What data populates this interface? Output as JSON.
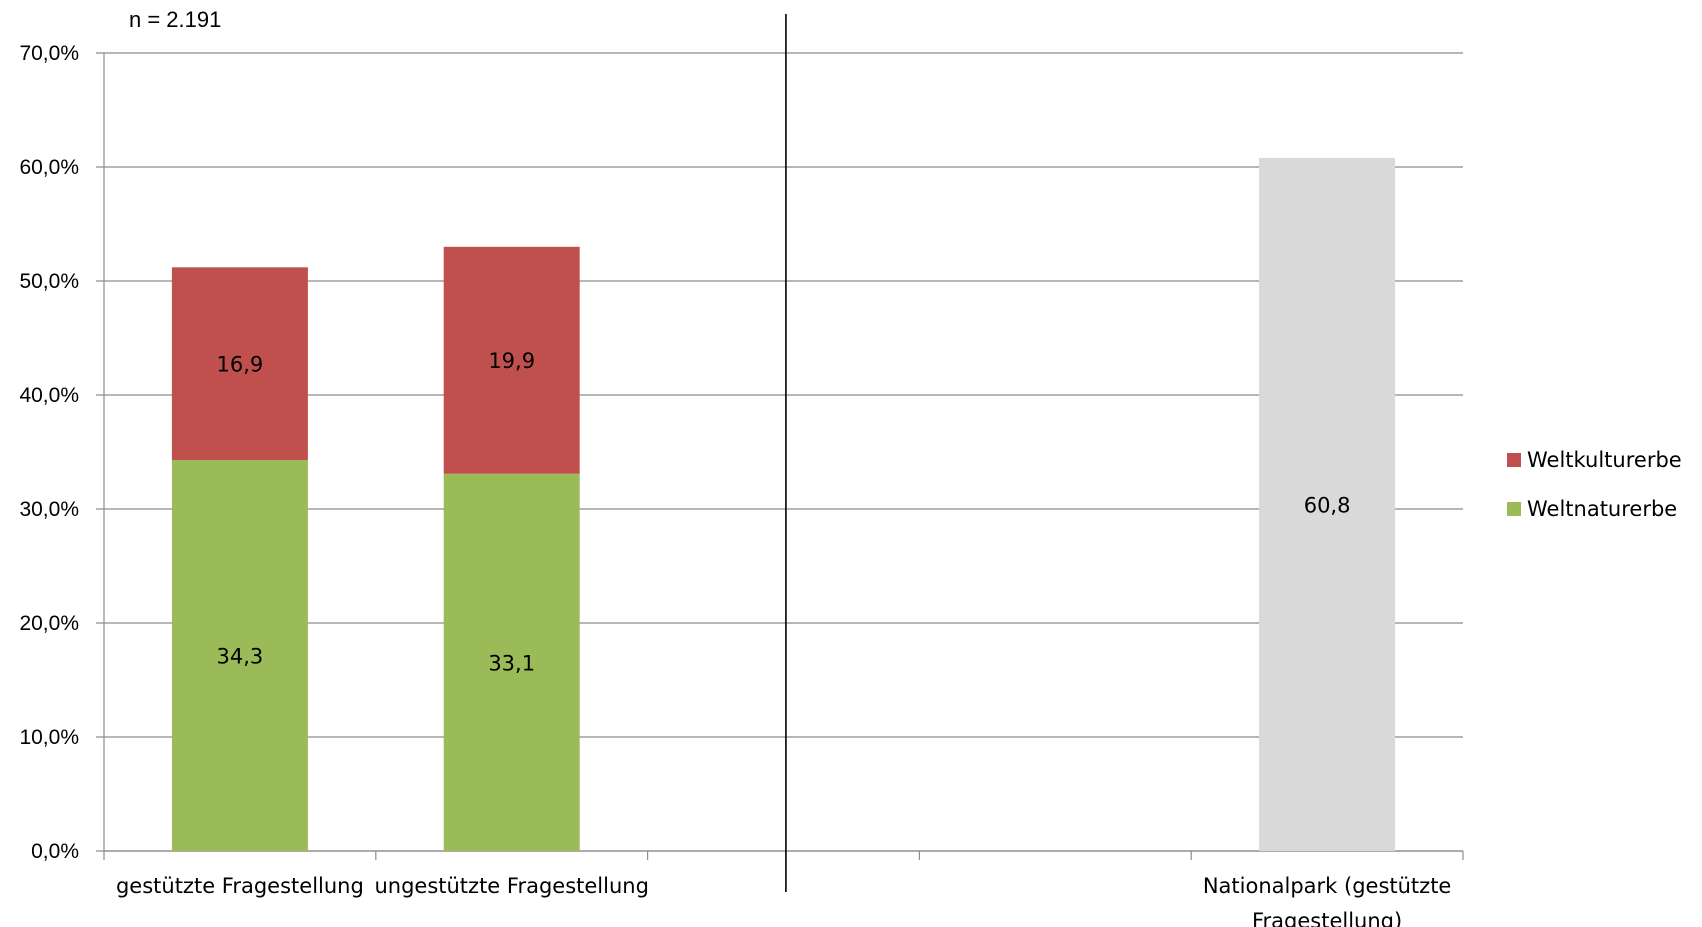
{
  "note": "n = 2.191",
  "colors": {
    "weltkulturerbe": "#c0504d",
    "weltnaturerbe": "#9bbb59",
    "nationalpark": "#d9d9d9",
    "grid": "#8c8c8c",
    "axis": "#8c8c8c",
    "separator": "#000000"
  },
  "chart_data": {
    "type": "bar",
    "stacked": true,
    "ylim": [
      0,
      70
    ],
    "yticks": [
      "0,0%",
      "10,0%",
      "20,0%",
      "30,0%",
      "40,0%",
      "50,0%",
      "60,0%",
      "70,0%"
    ],
    "ytick_values": [
      0,
      10,
      20,
      30,
      40,
      50,
      60,
      70
    ],
    "grid": true,
    "legend_position": "right",
    "categories": [
      [
        "gestützte Fragestellung"
      ],
      [
        "ungestützte Fragestellung"
      ],
      [
        ""
      ],
      [
        ""
      ],
      [
        "Nationalpark (gestützte",
        "Fragestellung)"
      ]
    ],
    "series": [
      {
        "name": "Weltnaturerbe",
        "color_key": "weltnaturerbe",
        "values": [
          34.3,
          33.1,
          null,
          null,
          null
        ],
        "labels": [
          "34,3",
          "33,1",
          "",
          "",
          ""
        ]
      },
      {
        "name": "Weltkulturerbe",
        "color_key": "weltkulturerbe",
        "values": [
          16.9,
          19.9,
          null,
          null,
          null
        ],
        "labels": [
          "16,9",
          "19,9",
          "",
          "",
          ""
        ]
      },
      {
        "name": "",
        "color_key": "nationalpark",
        "values": [
          null,
          null,
          null,
          null,
          60.8
        ],
        "labels": [
          "",
          "",
          "",
          "",
          "60,8"
        ]
      }
    ],
    "legend": [
      {
        "name": "Weltkulturerbe",
        "color_key": "weltkulturerbe"
      },
      {
        "name": "Weltnaturerbe",
        "color_key": "weltnaturerbe"
      }
    ],
    "separator_after_category": 2
  }
}
